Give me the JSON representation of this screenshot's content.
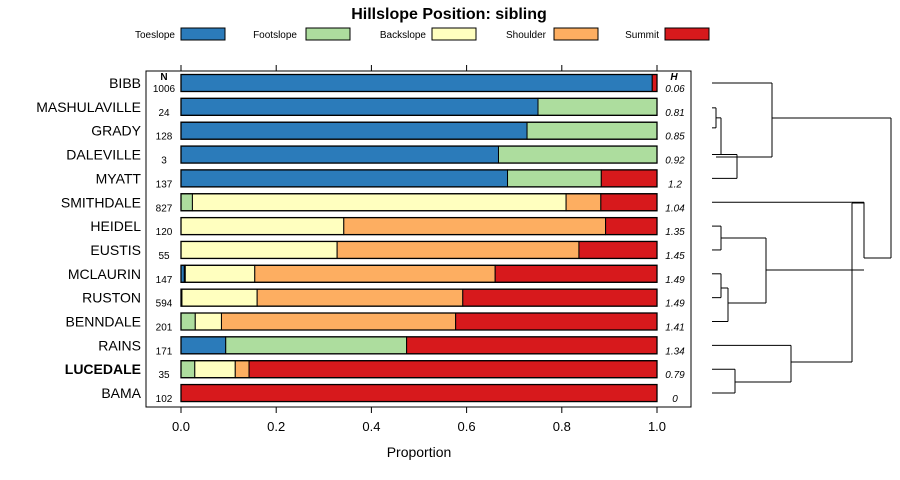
{
  "chart_data": {
    "type": "bar",
    "orientation": "horizontal",
    "stacked": true,
    "title": "Hillslope Position: sibling",
    "xlabel": "Proportion",
    "ylabel": "",
    "xlim": [
      0,
      1
    ],
    "xticks": [
      "0.0",
      "0.2",
      "0.4",
      "0.6",
      "0.8",
      "1.0"
    ],
    "n_header": "N",
    "h_header": "H",
    "legend_position": "top",
    "bold_category": "LUCEDALE",
    "series_names": [
      "Toeslope",
      "Footslope",
      "Backslope",
      "Shoulder",
      "Summit"
    ],
    "colors": [
      "#2b7bba",
      "#addd9e",
      "#ffffbf",
      "#fdae61",
      "#d7191c"
    ],
    "categories": [
      "BIBB",
      "MASHULAVILLE",
      "GRADY",
      "DALEVILLE",
      "MYATT",
      "SMITHDALE",
      "HEIDEL",
      "EUSTIS",
      "MCLAURIN",
      "RUSTON",
      "BENNDALE",
      "RAINS",
      "LUCEDALE",
      "BAMA"
    ],
    "n": [
      "1006",
      "24",
      "128",
      "3",
      "137",
      "827",
      "120",
      "55",
      "147",
      "594",
      "201",
      "171",
      "35",
      "102"
    ],
    "h": [
      "0.06",
      "0.81",
      "0.85",
      "0.92",
      "1.2",
      "1.04",
      "1.35",
      "1.45",
      "1.49",
      "1.49",
      "1.41",
      "1.34",
      "0.79",
      "0"
    ],
    "series": [
      {
        "name": "Toeslope",
        "values": [
          0.99,
          0.75,
          0.727,
          0.667,
          0.686,
          0.0,
          0.0,
          0.0,
          0.007,
          0.002,
          0.0,
          0.094,
          0.0,
          0.0
        ]
      },
      {
        "name": "Footslope",
        "values": [
          0.0,
          0.25,
          0.273,
          0.333,
          0.197,
          0.024,
          0.0,
          0.0,
          0.002,
          0.0,
          0.03,
          0.38,
          0.029,
          0.0
        ]
      },
      {
        "name": "Backslope",
        "values": [
          0.0,
          0.0,
          0.0,
          0.0,
          0.0,
          0.785,
          0.342,
          0.328,
          0.146,
          0.158,
          0.055,
          0.0,
          0.085,
          0.0
        ]
      },
      {
        "name": "Shoulder",
        "values": [
          0.0,
          0.0,
          0.0,
          0.0,
          0.0,
          0.073,
          0.55,
          0.508,
          0.505,
          0.432,
          0.492,
          0.0,
          0.029,
          0.0
        ]
      },
      {
        "name": "Summit",
        "values": [
          0.01,
          0.0,
          0.0,
          0.0,
          0.117,
          0.118,
          0.108,
          0.164,
          0.34,
          0.408,
          0.423,
          0.526,
          0.857,
          1.0
        ]
      }
    ],
    "dendrogram_note": "hierarchical clustering of series shown at right"
  }
}
